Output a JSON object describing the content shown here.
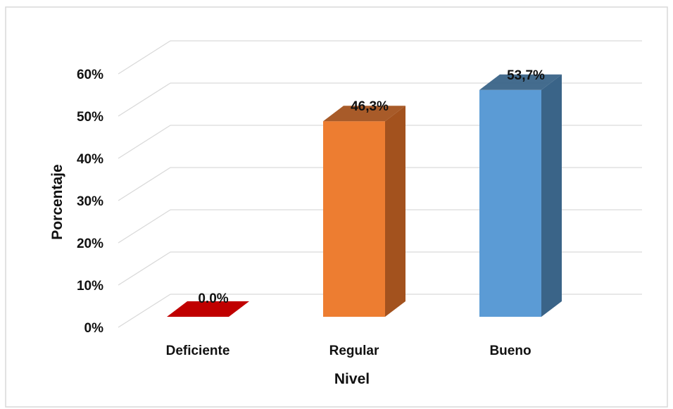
{
  "chart_data": {
    "type": "bar",
    "categories": [
      "Deficiente",
      "Regular",
      "Bueno"
    ],
    "values": [
      0.0,
      46.3,
      53.7
    ],
    "data_labels": [
      "0.0%",
      "46,3%",
      "53,7%"
    ],
    "colors": [
      "#C00000",
      "#ED7D31",
      "#5B9BD5"
    ],
    "side_colors": [
      "#8B0000",
      "#A3521E",
      "#3A6488"
    ],
    "title": "",
    "xlabel": "Nivel",
    "ylabel": "Porcentaje",
    "ylim": [
      0,
      60
    ],
    "yticks": [
      "0%",
      "10%",
      "20%",
      "30%",
      "40%",
      "50%",
      "60%"
    ],
    "grid": true,
    "style": "3d-column"
  }
}
